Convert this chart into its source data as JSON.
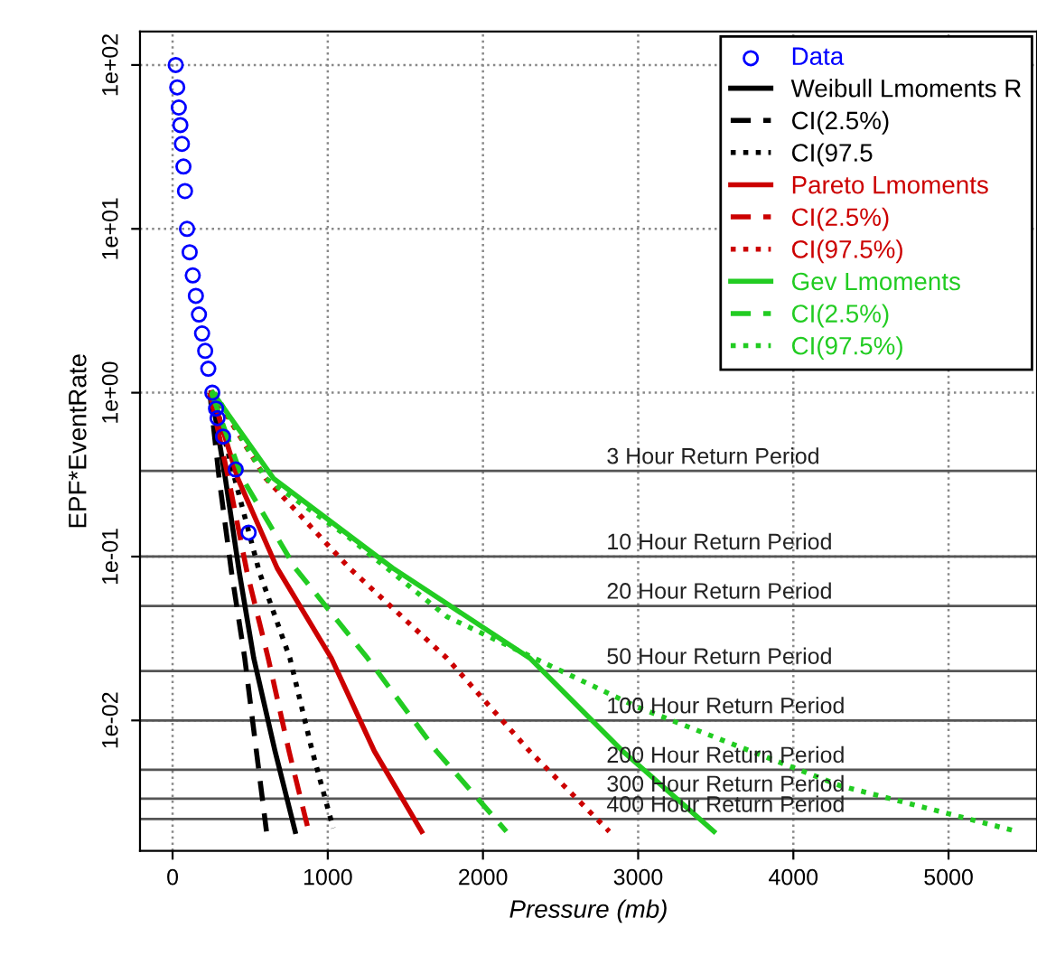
{
  "chart_data": {
    "type": "line",
    "xlabel": "Pressure (mb)",
    "ylabel": "EPF*EventRate",
    "log": "y",
    "grid": true,
    "legend": "top right",
    "xlim": [
      -210,
      5570
    ],
    "ylim": [
      0.0016,
      160
    ],
    "xticks": [
      0,
      1000,
      2000,
      3000,
      4000,
      5000
    ],
    "yticks": [
      {
        "value": 0.01,
        "label": "1e-02"
      },
      {
        "value": 0.1,
        "label": "1e-01"
      },
      {
        "value": 1,
        "label": "1e+00"
      },
      {
        "value": 10,
        "label": "1e+01"
      },
      {
        "value": 100,
        "label": "1e+02"
      }
    ],
    "series": [
      {
        "name": "Data",
        "type": "scatter",
        "marker": "circle",
        "color": "#0000ff",
        "x": [
          20,
          30,
          40,
          50,
          60,
          70,
          80,
          93,
          110,
          130,
          150,
          170,
          190,
          210,
          230,
          256,
          280,
          290,
          325,
          407,
          490
        ],
        "values": [
          100,
          73,
          55,
          43,
          33,
          24,
          17,
          10,
          7.2,
          5.2,
          3.9,
          3.0,
          2.3,
          1.8,
          1.4,
          1.0,
          0.8,
          0.7,
          0.54,
          0.34,
          0.14
        ]
      },
      {
        "name": "Weibull Lmoments R",
        "color": "#000000",
        "line_style": "solid",
        "x": [
          250,
          340,
          430,
          523,
          660,
          790
        ],
        "values": [
          1,
          0.3,
          0.08,
          0.024,
          0.0065,
          0.0021
        ]
      },
      {
        "name": "CI(2.5%)",
        "color": "#000000",
        "line_style": "dashed",
        "x": [
          240,
          300,
          380,
          465,
          540,
          605
        ],
        "values": [
          1,
          0.3,
          0.08,
          0.024,
          0.0065,
          0.0021
        ]
      },
      {
        "name": "CI(97.5",
        "color": "#000000",
        "line_style": "dotted",
        "x": [
          260,
          400,
          560,
          756,
          900,
          1035
        ],
        "values": [
          1,
          0.3,
          0.08,
          0.024,
          0.0065,
          0.0022
        ]
      },
      {
        "name": "Pareto Lmoments",
        "color": "#cc0000",
        "line_style": "solid",
        "x": [
          250,
          420,
          674,
          1023,
          1300,
          1605
        ],
        "values": [
          1,
          0.3,
          0.085,
          0.024,
          0.0065,
          0.0021
        ]
      },
      {
        "name": "CI(2.5%)",
        "color": "#cc0000",
        "line_style": "dashed",
        "x": [
          240,
          360,
          480,
          616,
          750,
          872
        ],
        "values": [
          1,
          0.3,
          0.08,
          0.024,
          0.0065,
          0.0022
        ]
      },
      {
        "name": "CI(97.5%)",
        "color": "#cc0000",
        "line_style": "dotted",
        "x": [
          260,
          600,
          1140,
          1767,
          2300,
          2814
        ],
        "values": [
          1,
          0.3,
          0.085,
          0.024,
          0.0065,
          0.0021
        ]
      },
      {
        "name": "Gev Lmoments",
        "color": "#22cc22",
        "line_style": "solid",
        "x": [
          260,
          650,
          1419,
          2302,
          2900,
          3488
        ],
        "values": [
          1,
          0.3,
          0.085,
          0.024,
          0.0065,
          0.0021
        ]
      },
      {
        "name": "CI(2.5%)",
        "color": "#22cc22",
        "line_style": "dashed",
        "x": [
          250,
          450,
          791,
          1256,
          1700,
          2151
        ],
        "values": [
          1,
          0.3,
          0.085,
          0.024,
          0.0065,
          0.0021
        ]
      },
      {
        "name": "CI(97.5%)",
        "color": "#22cc22",
        "line_style": "dotted",
        "x": [
          270,
          600,
          1140,
          1767,
          3000,
          4300,
          5442
        ],
        "values": [
          1,
          0.3,
          0.13,
          0.043,
          0.012,
          0.004,
          0.0021
        ]
      }
    ],
    "ref_lines": [
      {
        "axis": "y",
        "value": 0.333,
        "label": "3 Hour Return Period",
        "color": "#555555"
      },
      {
        "axis": "y",
        "value": 0.1,
        "label": "10 Hour Return Period",
        "color": "#555555"
      },
      {
        "axis": "y",
        "value": 0.05,
        "label": "20 Hour Return Period",
        "color": "#555555"
      },
      {
        "axis": "y",
        "value": 0.02,
        "label": "50 Hour Return Period",
        "color": "#555555"
      },
      {
        "axis": "y",
        "value": 0.01,
        "label": "100 Hour Return Period",
        "color": "#555555"
      },
      {
        "axis": "y",
        "value": 0.005,
        "label": "200 Hour Return Period",
        "color": "#555555"
      },
      {
        "axis": "y",
        "value": 0.00333,
        "label": "300 Hour Return Period",
        "color": "#555555"
      },
      {
        "axis": "y",
        "value": 0.0025,
        "label": "400 Hour Return Period",
        "color": "#555555"
      }
    ]
  }
}
